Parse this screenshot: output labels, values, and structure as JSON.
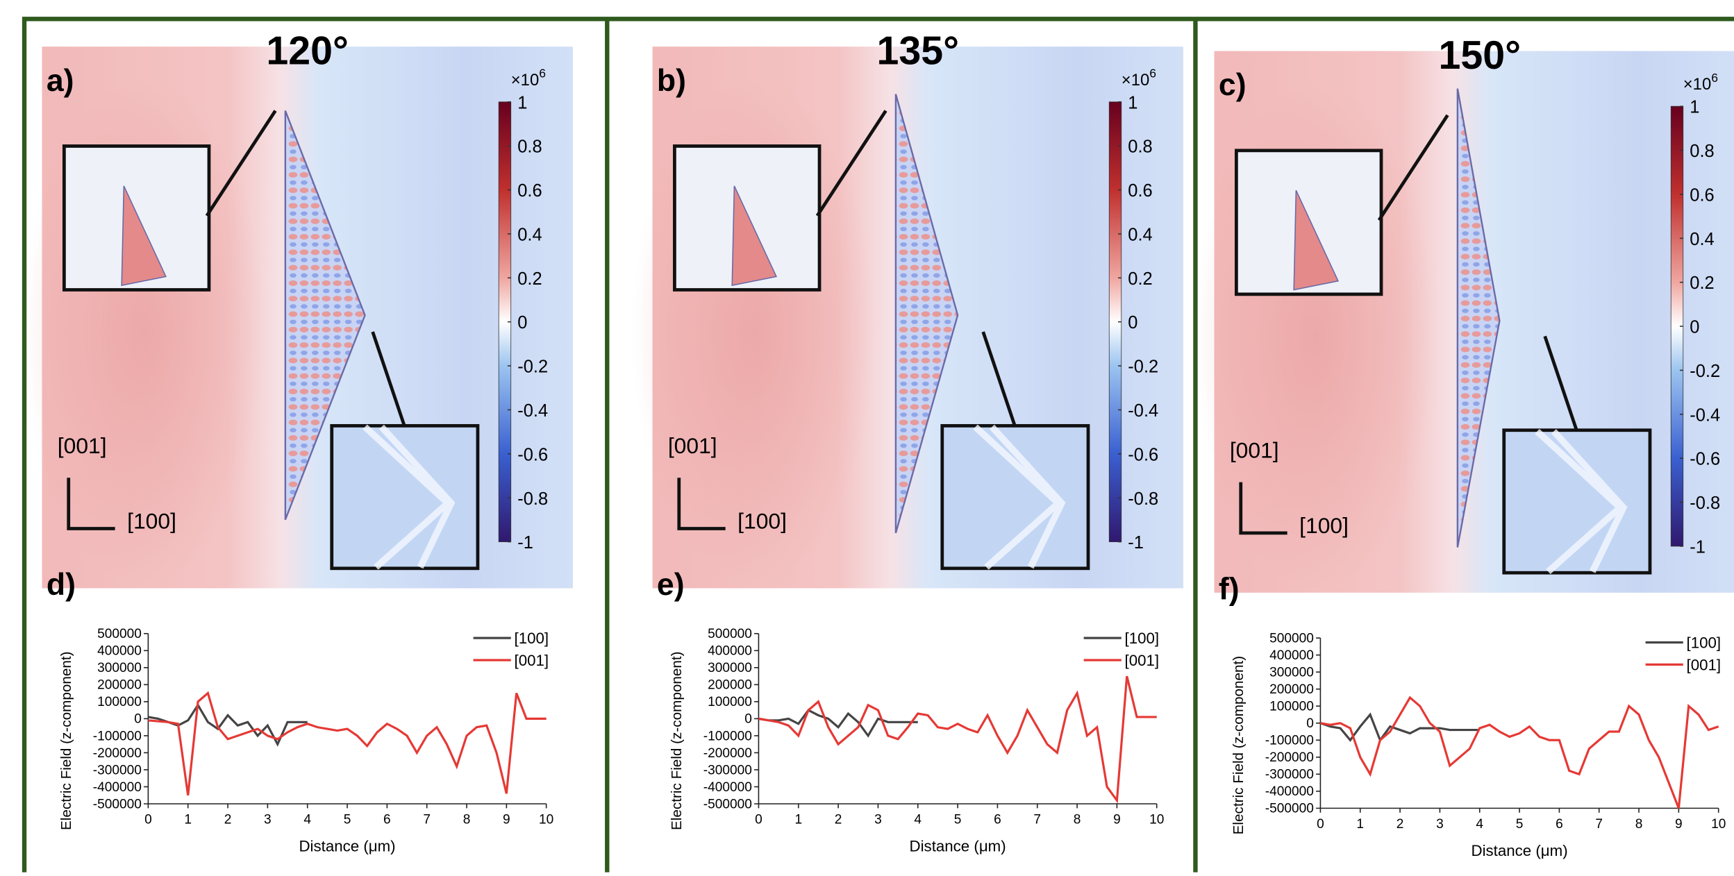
{
  "panels": [
    {
      "title": "120°",
      "label": "a)",
      "chart_label": "d)",
      "dir_up": "[001]",
      "dir_right": "[100]",
      "colorbar": {
        "unit": "×10",
        "exponent": "6",
        "lim": [
          -1,
          1
        ],
        "ticks": [
          1,
          0.8,
          0.6,
          0.4,
          0.2,
          0,
          -0.2,
          -0.4,
          -0.6,
          -0.8,
          -1
        ]
      }
    },
    {
      "title": "135°",
      "label": "b)",
      "chart_label": "e)",
      "dir_up": "[001]",
      "dir_right": "[100]",
      "colorbar": {
        "unit": "×10",
        "exponent": "6",
        "lim": [
          -1,
          1
        ],
        "ticks": [
          1,
          0.8,
          0.6,
          0.4,
          0.2,
          0,
          -0.2,
          -0.4,
          -0.6,
          -0.8,
          -1
        ]
      }
    },
    {
      "title": "150°",
      "label": "c)",
      "chart_label": "f)",
      "dir_up": "[001]",
      "dir_right": "[100]",
      "colorbar": {
        "unit": "×10",
        "exponent": "6",
        "lim": [
          -1,
          1
        ],
        "ticks": [
          1,
          0.8,
          0.6,
          0.4,
          0.2,
          0,
          -0.2,
          -0.4,
          -0.6,
          -0.8,
          -1
        ]
      }
    }
  ],
  "chart_data": [
    {
      "type": "line",
      "x_label": "Distance (μm)",
      "y_label": "Electric Field (z-component)",
      "xlim": [
        0,
        10
      ],
      "ylim": [
        -500000,
        500000
      ],
      "xticks": [
        0,
        1,
        2,
        3,
        4,
        5,
        6,
        7,
        8,
        9,
        10
      ],
      "yticks": [
        500000,
        400000,
        300000,
        200000,
        100000,
        0,
        -100000,
        -200000,
        -300000,
        -400000,
        -500000
      ],
      "series": [
        {
          "name": "[100]",
          "color": "#444444",
          "x": [
            0,
            0.25,
            0.5,
            0.75,
            1,
            1.25,
            1.5,
            1.75,
            2,
            2.25,
            2.5,
            2.75,
            3,
            3.25,
            3.5,
            3.75,
            4
          ],
          "values": [
            10000,
            0,
            -20000,
            -40000,
            -10000,
            80000,
            -20000,
            -60000,
            20000,
            -40000,
            -20000,
            -100000,
            -40000,
            -150000,
            -20000,
            -20000,
            -20000
          ]
        },
        {
          "name": "[001]",
          "color": "#e53935",
          "x": [
            0,
            0.25,
            0.5,
            0.75,
            1,
            1.25,
            1.5,
            1.75,
            2,
            2.25,
            2.5,
            2.75,
            3,
            3.25,
            3.5,
            3.75,
            4,
            4.25,
            4.5,
            4.75,
            5,
            5.25,
            5.5,
            5.75,
            6,
            6.25,
            6.5,
            6.75,
            7,
            7.25,
            7.5,
            7.75,
            8,
            8.25,
            8.5,
            8.75,
            9,
            9.25,
            9.5,
            9.75,
            10
          ],
          "values": [
            -10000,
            -15000,
            -20000,
            -30000,
            -450000,
            100000,
            150000,
            -50000,
            -120000,
            -100000,
            -80000,
            -60000,
            -100000,
            -120000,
            -80000,
            -50000,
            -30000,
            -50000,
            -60000,
            -70000,
            -60000,
            -100000,
            -160000,
            -80000,
            -30000,
            -60000,
            -100000,
            -200000,
            -100000,
            -50000,
            -150000,
            -280000,
            -100000,
            -50000,
            -40000,
            -200000,
            -440000,
            150000,
            0,
            0,
            0
          ]
        }
      ]
    },
    {
      "type": "line",
      "x_label": "Distance (μm)",
      "y_label": "Electric Field (z-component)",
      "xlim": [
        0,
        10
      ],
      "ylim": [
        -500000,
        500000
      ],
      "xticks": [
        0,
        1,
        2,
        3,
        4,
        5,
        6,
        7,
        8,
        9,
        10
      ],
      "yticks": [
        500000,
        400000,
        300000,
        200000,
        100000,
        0,
        -100000,
        -200000,
        -300000,
        -400000,
        -500000
      ],
      "series": [
        {
          "name": "[100]",
          "color": "#444444",
          "x": [
            0,
            0.25,
            0.5,
            0.75,
            1,
            1.25,
            1.5,
            1.75,
            2,
            2.25,
            2.5,
            2.75,
            3,
            3.25,
            3.5,
            3.75,
            4
          ],
          "values": [
            0,
            -10000,
            -10000,
            0,
            -30000,
            50000,
            20000,
            0,
            -50000,
            30000,
            -20000,
            -100000,
            0,
            -20000,
            -20000,
            -20000,
            -20000
          ]
        },
        {
          "name": "[001]",
          "color": "#e53935",
          "x": [
            0,
            0.25,
            0.5,
            0.75,
            1,
            1.25,
            1.5,
            1.75,
            2,
            2.25,
            2.5,
            2.75,
            3,
            3.25,
            3.5,
            3.75,
            4,
            4.25,
            4.5,
            4.75,
            5,
            5.25,
            5.5,
            5.75,
            6,
            6.25,
            6.5,
            6.75,
            7,
            7.25,
            7.5,
            7.75,
            8,
            8.25,
            8.5,
            8.75,
            9,
            9.25,
            9.5,
            9.75,
            10
          ],
          "values": [
            0,
            -10000,
            -20000,
            -40000,
            -100000,
            50000,
            100000,
            -50000,
            -150000,
            -100000,
            -50000,
            80000,
            50000,
            -100000,
            -120000,
            -50000,
            30000,
            20000,
            -50000,
            -60000,
            -30000,
            -60000,
            -80000,
            20000,
            -100000,
            -200000,
            -100000,
            50000,
            -50000,
            -150000,
            -200000,
            50000,
            150000,
            -100000,
            -50000,
            -400000,
            -480000,
            250000,
            10000,
            10000,
            10000
          ]
        }
      ]
    },
    {
      "type": "line",
      "x_label": "Distance (μm)",
      "y_label": "Electric Field (z-component)",
      "xlim": [
        0,
        10
      ],
      "ylim": [
        -500000,
        500000
      ],
      "xticks": [
        0,
        1,
        2,
        3,
        4,
        5,
        6,
        7,
        8,
        9,
        10
      ],
      "yticks": [
        500000,
        400000,
        300000,
        200000,
        100000,
        0,
        -100000,
        -200000,
        -300000,
        -400000,
        -500000
      ],
      "series": [
        {
          "name": "[100]",
          "color": "#444444",
          "x": [
            0,
            0.25,
            0.5,
            0.75,
            1,
            1.25,
            1.5,
            1.75,
            2,
            2.25,
            2.5,
            2.75,
            3,
            3.25,
            3.5,
            3.75,
            4
          ],
          "values": [
            0,
            -20000,
            -30000,
            -100000,
            -20000,
            50000,
            -100000,
            -20000,
            -40000,
            -60000,
            -30000,
            -30000,
            -30000,
            -40000,
            -40000,
            -40000,
            -40000
          ]
        },
        {
          "name": "[001]",
          "color": "#e53935",
          "x": [
            0,
            0.25,
            0.5,
            0.75,
            1,
            1.25,
            1.5,
            1.75,
            2,
            2.25,
            2.5,
            2.75,
            3,
            3.25,
            3.5,
            3.75,
            4,
            4.25,
            4.5,
            4.75,
            5,
            5.25,
            5.5,
            5.75,
            6,
            6.25,
            6.5,
            6.75,
            7,
            7.25,
            7.5,
            7.75,
            8,
            8.25,
            8.5,
            8.75,
            9,
            9.25,
            9.5,
            9.75,
            10
          ],
          "values": [
            0,
            -10000,
            0,
            -30000,
            -200000,
            -300000,
            -100000,
            -50000,
            50000,
            150000,
            100000,
            0,
            -50000,
            -250000,
            -200000,
            -150000,
            -30000,
            -10000,
            -50000,
            -80000,
            -60000,
            -20000,
            -80000,
            -100000,
            -100000,
            -280000,
            -300000,
            -150000,
            -100000,
            -50000,
            -50000,
            100000,
            50000,
            -100000,
            -200000,
            -350000,
            -500000,
            100000,
            50000,
            -40000,
            -20000
          ]
        }
      ]
    }
  ]
}
